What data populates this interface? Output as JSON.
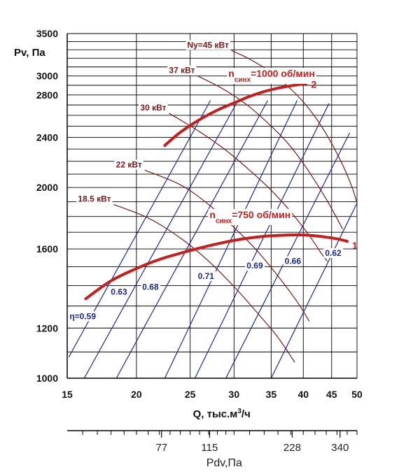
{
  "chart_data": {
    "type": "line",
    "ylabel": "Pv, Па",
    "xlabel_parts": {
      "main": "Q, тыс.м",
      "sup": "3",
      "tail": "/ч"
    },
    "x_scale": "log",
    "y_scale": "log",
    "xlim": [
      15,
      50
    ],
    "ylim": [
      1000,
      3500
    ],
    "x_ticks": [
      15,
      20,
      25,
      30,
      35,
      40,
      45,
      50
    ],
    "y_ticks": [
      1000,
      1200,
      1600,
      2000,
      2400,
      2800,
      3000,
      3500
    ],
    "y_grid": [
      1000,
      1100,
      1200,
      1300,
      1400,
      1500,
      1600,
      1700,
      1800,
      1900,
      2000,
      2100,
      2200,
      2300,
      2400,
      2500,
      2600,
      2700,
      2800,
      2900,
      3000,
      3100,
      3200,
      3300,
      3400,
      3500
    ],
    "grid": true,
    "speed_curves": [
      {
        "id": "1",
        "number": "1",
        "label_main": "n",
        "label_sub": "синх",
        "label_tail": "=750 об/мин",
        "points": [
          [
            16.2,
            1335
          ],
          [
            18,
            1425
          ],
          [
            20,
            1490
          ],
          [
            22,
            1540
          ],
          [
            24,
            1575
          ],
          [
            26,
            1605
          ],
          [
            28,
            1630
          ],
          [
            30,
            1650
          ],
          [
            32,
            1665
          ],
          [
            34,
            1675
          ],
          [
            36,
            1680
          ],
          [
            38,
            1683
          ],
          [
            40,
            1683
          ],
          [
            42,
            1678
          ],
          [
            44,
            1670
          ],
          [
            46,
            1660
          ],
          [
            48,
            1645
          ]
        ]
      },
      {
        "id": "2",
        "number": "2",
        "label_main": "n",
        "label_sub": "синх",
        "label_tail": "=1000 об/мин",
        "points": [
          [
            22.5,
            2330
          ],
          [
            24,
            2445
          ],
          [
            26,
            2560
          ],
          [
            28,
            2650
          ],
          [
            30,
            2720
          ],
          [
            32,
            2785
          ],
          [
            34,
            2835
          ],
          [
            36,
            2870
          ],
          [
            38,
            2895
          ],
          [
            40.5,
            2920
          ]
        ]
      }
    ],
    "power_curves": [
      {
        "label": "18.5 кВт",
        "points": [
          [
            18.2,
            1880
          ],
          [
            21,
            1790
          ],
          [
            24,
            1665
          ],
          [
            27,
            1530
          ],
          [
            30,
            1395
          ],
          [
            33,
            1270
          ],
          [
            36,
            1160
          ],
          [
            38.6,
            1060
          ]
        ]
      },
      {
        "label": "22 кВт",
        "points": [
          [
            20.7,
            2130
          ],
          [
            24,
            2020
          ],
          [
            27,
            1880
          ],
          [
            30,
            1730
          ],
          [
            33,
            1590
          ],
          [
            36,
            1450
          ],
          [
            39,
            1320
          ],
          [
            41,
            1230
          ]
        ]
      },
      {
        "label": "30 кВт",
        "points": [
          [
            22.9,
            2620
          ],
          [
            26,
            2450
          ],
          [
            29,
            2290
          ],
          [
            32,
            2130
          ],
          [
            35,
            1980
          ],
          [
            38,
            1830
          ],
          [
            41,
            1680
          ],
          [
            43,
            1580
          ],
          [
            44.2,
            1530
          ]
        ]
      },
      {
        "label": "37 кВт",
        "points": [
          [
            25.8,
            3000
          ],
          [
            28.5,
            2870
          ],
          [
            31.5,
            2710
          ],
          [
            34.5,
            2530
          ],
          [
            37.5,
            2350
          ],
          [
            40.5,
            2150
          ],
          [
            43.5,
            1950
          ],
          [
            45.5,
            1820
          ],
          [
            47.1,
            1720
          ]
        ]
      },
      {
        "label": "Ny=45 кВт",
        "points": [
          [
            29.7,
            3290
          ],
          [
            32,
            3190
          ],
          [
            35,
            3040
          ],
          [
            38,
            2860
          ],
          [
            41,
            2660
          ],
          [
            44,
            2430
          ],
          [
            47,
            2180
          ],
          [
            49,
            2000
          ],
          [
            50,
            1890
          ]
        ]
      }
    ],
    "efficiency_lines": [
      {
        "label": "η=0.59",
        "points": [
          [
            15.1,
            1080
          ],
          [
            27.2,
            2745
          ]
        ]
      },
      {
        "label": "0.63",
        "points": [
          [
            16.1,
            1000
          ],
          [
            30.5,
            2745
          ]
        ]
      },
      {
        "label": "0.68",
        "points": [
          [
            18.4,
            1000
          ],
          [
            34.5,
            2745
          ]
        ]
      },
      {
        "label": "0.71",
        "points": [
          [
            22.5,
            1000
          ],
          [
            39,
            2745
          ]
        ]
      },
      {
        "label": "0.69",
        "points": [
          [
            25.5,
            1000
          ],
          [
            44.5,
            2715
          ]
        ]
      },
      {
        "label": "0.66",
        "points": [
          [
            29,
            1000
          ],
          [
            48.5,
            2440
          ]
        ]
      },
      {
        "label": "0.62",
        "points": [
          [
            35,
            1000
          ],
          [
            50,
            1890
          ]
        ]
      }
    ],
    "pdv_axis": {
      "label": "Pdv,Па",
      "tick_labels": [
        {
          "text": "77",
          "q": 22.2
        },
        {
          "text": "115",
          "q": 27.1
        },
        {
          "text": "228",
          "q": 38.2
        },
        {
          "text": "340",
          "q": 46.6
        }
      ]
    }
  },
  "colors": {
    "speed": "#c61d1d",
    "power": "#7a1818",
    "efficiency": "#1a2aa0",
    "grid": "#000000"
  }
}
